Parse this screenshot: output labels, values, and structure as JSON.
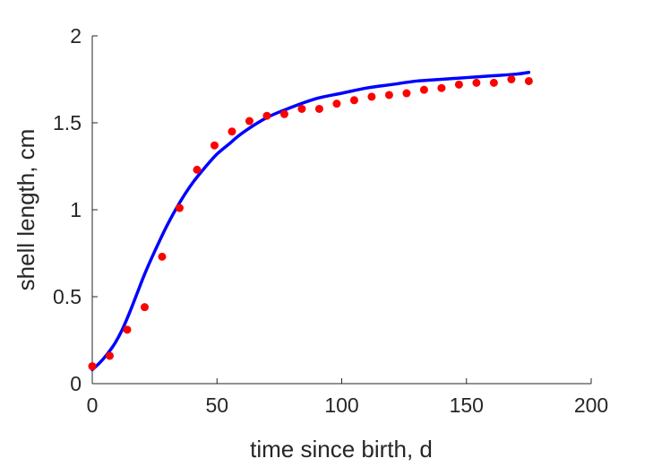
{
  "chart_data": {
    "type": "scatter",
    "title": "",
    "xlabel": "time since birth, d",
    "ylabel": "shell length, cm",
    "xlim": [
      0,
      200
    ],
    "ylim": [
      0,
      2
    ],
    "xticks": [
      0,
      50,
      100,
      150,
      200
    ],
    "yticks": [
      0,
      0.5,
      1,
      1.5,
      2
    ],
    "xtick_labels": [
      "0",
      "50",
      "100",
      "150",
      "200"
    ],
    "ytick_labels": [
      "0",
      "0.5",
      "1",
      "1.5",
      "2"
    ],
    "grid": false,
    "series": [
      {
        "kind": "points",
        "color": "#ff0000",
        "x": [
          0,
          7,
          14,
          21,
          28,
          35,
          42,
          49,
          56,
          63,
          70,
          77,
          84,
          91,
          98,
          105,
          112,
          119,
          126,
          133,
          140,
          147,
          154,
          161,
          168,
          175
        ],
        "y": [
          0.1,
          0.16,
          0.31,
          0.44,
          0.73,
          1.01,
          1.23,
          1.37,
          1.45,
          1.51,
          1.54,
          1.55,
          1.58,
          1.58,
          1.61,
          1.63,
          1.65,
          1.66,
          1.67,
          1.69,
          1.7,
          1.72,
          1.73,
          1.73,
          1.75,
          1.74
        ]
      },
      {
        "kind": "line",
        "color": "#0000ff",
        "x": [
          0,
          3,
          6,
          9,
          12,
          15,
          18,
          21,
          25,
          30,
          35,
          40,
          45,
          50,
          55,
          60,
          70,
          80,
          90,
          100,
          110,
          120,
          130,
          140,
          150,
          160,
          170,
          175
        ],
        "y": [
          0.08,
          0.12,
          0.17,
          0.23,
          0.31,
          0.41,
          0.52,
          0.63,
          0.76,
          0.91,
          1.04,
          1.15,
          1.24,
          1.32,
          1.38,
          1.44,
          1.53,
          1.59,
          1.64,
          1.67,
          1.7,
          1.72,
          1.74,
          1.75,
          1.76,
          1.77,
          1.78,
          1.79
        ]
      }
    ]
  }
}
